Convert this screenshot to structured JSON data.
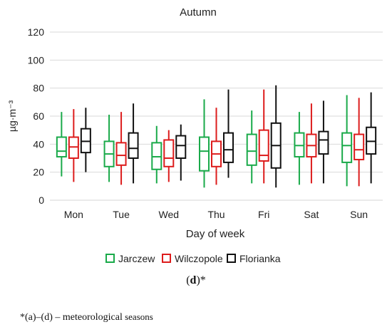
{
  "chart_data": {
    "type": "box",
    "title": "Autumn",
    "xlabel": "Day of week",
    "ylabel": "µg·m⁻³",
    "ylim": [
      0,
      120
    ],
    "yticks": [
      0,
      20,
      40,
      60,
      80,
      100,
      120
    ],
    "grid": true,
    "legend_position": "bottom",
    "categories": [
      "Mon",
      "Tue",
      "Wed",
      "Thu",
      "Fri",
      "Sat",
      "Sun"
    ],
    "series": [
      {
        "name": "Jarczew",
        "color": "#1aaa4a",
        "boxes": [
          {
            "min": 17,
            "q1": 31,
            "median": 35,
            "q3": 45,
            "max": 63
          },
          {
            "min": 13,
            "q1": 24,
            "median": 33,
            "q3": 42,
            "max": 61
          },
          {
            "min": 12,
            "q1": 22,
            "median": 31,
            "q3": 41,
            "max": 53
          },
          {
            "min": 9,
            "q1": 21,
            "median": 35,
            "q3": 45,
            "max": 72
          },
          {
            "min": 12,
            "q1": 25,
            "median": 35,
            "q3": 47,
            "max": 64
          },
          {
            "min": 11,
            "q1": 31,
            "median": 39,
            "q3": 48,
            "max": 63
          },
          {
            "min": 10,
            "q1": 27,
            "median": 39,
            "q3": 48,
            "max": 75
          }
        ]
      },
      {
        "name": "Wilczopole",
        "color": "#dd1c1c",
        "boxes": [
          {
            "min": 13,
            "q1": 30,
            "median": 38,
            "q3": 45,
            "max": 65
          },
          {
            "min": 11,
            "q1": 25,
            "median": 32,
            "q3": 41,
            "max": 63
          },
          {
            "min": 13,
            "q1": 24,
            "median": 30,
            "q3": 43,
            "max": 50
          },
          {
            "min": 11,
            "q1": 24,
            "median": 33,
            "q3": 42,
            "max": 66
          },
          {
            "min": 12,
            "q1": 28,
            "median": 32,
            "q3": 50,
            "max": 79
          },
          {
            "min": 12,
            "q1": 31,
            "median": 39,
            "q3": 47,
            "max": 69
          },
          {
            "min": 10,
            "q1": 29,
            "median": 36,
            "q3": 47,
            "max": 73
          }
        ]
      },
      {
        "name": "Florianka",
        "color": "#111111",
        "boxes": [
          {
            "min": 20,
            "q1": 34,
            "median": 42,
            "q3": 51,
            "max": 66
          },
          {
            "min": 12,
            "q1": 30,
            "median": 37,
            "q3": 48,
            "max": 69
          },
          {
            "min": 14,
            "q1": 30,
            "median": 39,
            "q3": 46,
            "max": 54
          },
          {
            "min": 16,
            "q1": 27,
            "median": 36,
            "q3": 48,
            "max": 79
          },
          {
            "min": 9,
            "q1": 23,
            "median": 39,
            "q3": 55,
            "max": 82
          },
          {
            "min": 12,
            "q1": 33,
            "median": 43,
            "q3": 49,
            "max": 71
          },
          {
            "min": 12,
            "q1": 33,
            "median": 42,
            "q3": 52,
            "max": 77
          }
        ]
      }
    ]
  },
  "caption": {
    "letter": "d",
    "before": "(",
    "after": ")*"
  },
  "footnote": {
    "mark": "*(a)–(d)",
    "dash": " – ",
    "text1": "meteorological",
    "text2": " seasons"
  }
}
